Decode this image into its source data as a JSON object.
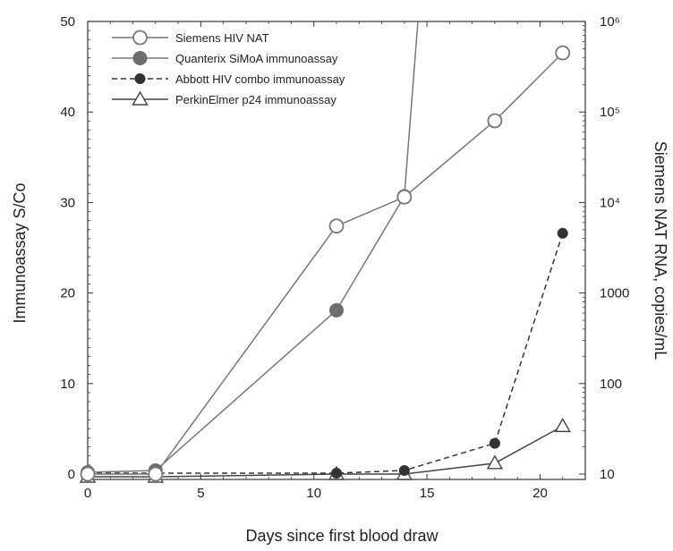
{
  "chart_data": {
    "type": "line",
    "x_label": "Days since first blood draw",
    "y_label": "Immunoassay S/Co",
    "y2_label": "Siemens NAT RNA, copies/mL",
    "x_range": [
      0,
      22
    ],
    "y_range": [
      0,
      50
    ],
    "y2_range": [
      10,
      1000000
    ],
    "y2_scale": "log",
    "x_ticks": [
      "0",
      "5",
      "10",
      "15",
      "20"
    ],
    "y_ticks": [
      "0",
      "10",
      "20",
      "30",
      "40",
      "50"
    ],
    "y2_ticks": [
      "10",
      "100",
      "1000",
      "10⁴",
      "10⁵",
      "10⁶"
    ],
    "legend_position": "top-left",
    "series": [
      {
        "name": "Siemens HIV NAT",
        "axis": "right",
        "marker": "open-circle",
        "line": "solid",
        "color": "#777777",
        "x": [
          0,
          3,
          11,
          14,
          18,
          21
        ],
        "y": [
          10,
          10,
          5500,
          11500,
          80000,
          450000
        ]
      },
      {
        "name": "Quanterix SiMoA immunoassay",
        "axis": "left",
        "marker": "filled-circle-large",
        "line": "solid",
        "color": "#777777",
        "x": [
          0,
          3,
          11,
          14,
          14.6
        ],
        "y": [
          0.2,
          0.4,
          18.1,
          30.7,
          50
        ]
      },
      {
        "name": "Abbott HIV combo immunoassay",
        "axis": "left",
        "marker": "filled-circle-small",
        "line": "dashed",
        "color": "#333333",
        "x": [
          0,
          3,
          11,
          14,
          18,
          21
        ],
        "y": [
          0.1,
          0.1,
          0.1,
          0.4,
          3.4,
          26.6
        ]
      },
      {
        "name": "PerkinElmer p24 immunoassay",
        "axis": "left",
        "marker": "open-triangle",
        "line": "solid",
        "color": "#444444",
        "x": [
          0,
          3,
          11,
          14,
          18,
          21
        ],
        "y": [
          -0.3,
          -0.3,
          0,
          0,
          1.2,
          5.3
        ]
      }
    ]
  }
}
